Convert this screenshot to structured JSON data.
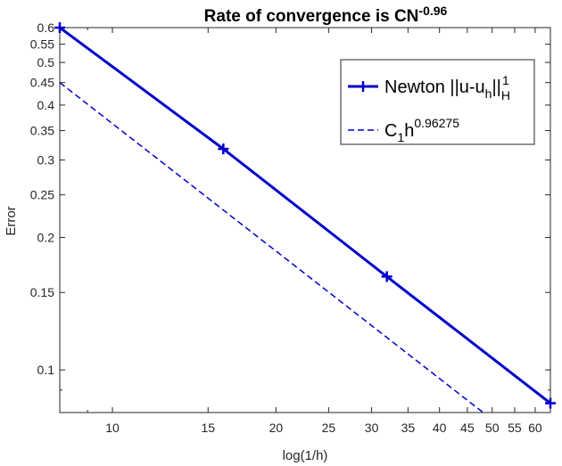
{
  "chart_data": {
    "type": "line",
    "title": {
      "main": "Rate of convergence is CN",
      "exponent": "-0.96"
    },
    "xlabel": "log(1/h)",
    "ylabel": "Error",
    "xscale": "log",
    "yscale": "log",
    "xlim": [
      8,
      64
    ],
    "ylim": [
      0.08,
      0.6
    ],
    "xticks": [
      10,
      15,
      20,
      25,
      30,
      35,
      40,
      45,
      50,
      55,
      60
    ],
    "xtick_labels": [
      "10",
      "15",
      "20",
      "25",
      "30",
      "35",
      "40",
      "45",
      "50",
      "55",
      "60"
    ],
    "yticks": [
      0.1,
      0.15,
      0.2,
      0.25,
      0.3,
      0.35,
      0.4,
      0.45,
      0.5,
      0.55,
      0.6
    ],
    "ytick_labels": [
      "0.1",
      "0.15",
      "0.2",
      "0.25",
      "0.3",
      "0.35",
      "0.4",
      "0.45",
      "0.5",
      "0.55",
      "0.6"
    ],
    "grid": false,
    "legend_position": "top-right",
    "series": [
      {
        "name": "Newton ||u-u_h||_H^1",
        "legend": {
          "base": "Newton ||u-u",
          "sub1": "h",
          "mid": "||",
          "sub2": "H",
          "sup": "1"
        },
        "style": "solid-plus",
        "color": "#0000cc",
        "x": [
          8,
          16,
          32,
          64
        ],
        "y": [
          0.6,
          0.318,
          0.163,
          0.084
        ]
      },
      {
        "name": "C_1h^0.96275",
        "legend": {
          "base": "C",
          "sub": "1",
          "mid": "h",
          "sup": "0.96275"
        },
        "style": "dashed",
        "color": "#0000cc",
        "x": [
          8,
          64
        ],
        "y": [
          0.45,
          0.0608
        ]
      }
    ]
  }
}
